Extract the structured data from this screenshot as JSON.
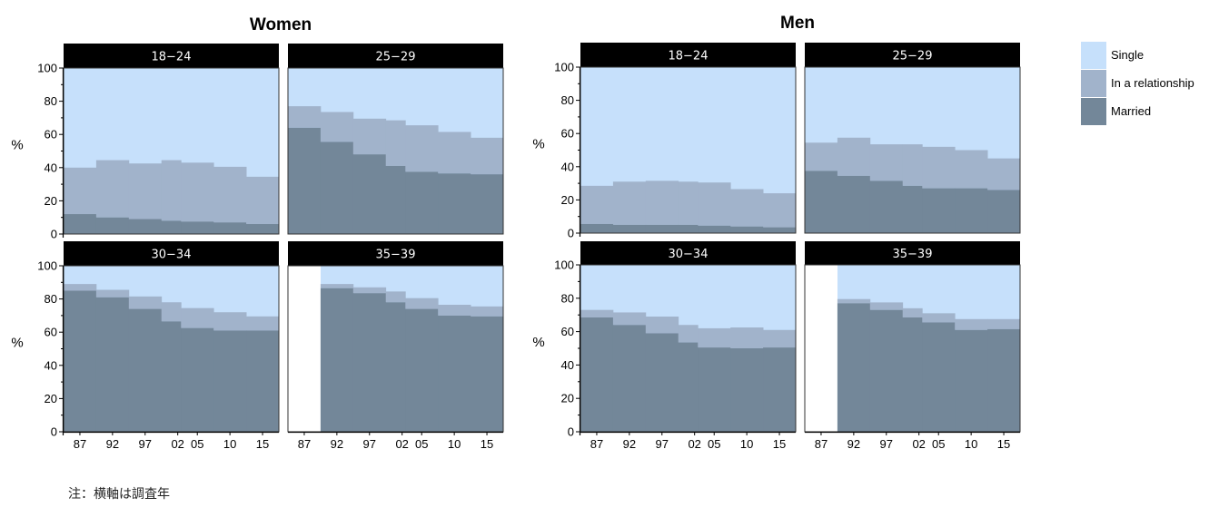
{
  "colors": {
    "single": "#c6e0fb",
    "relationship": "#a1b3cb",
    "married": "#738799",
    "strip": "#000000",
    "missing": "#ffffff"
  },
  "note": "注：横軸は調査年",
  "chart_data": {
    "type": "area",
    "groups": [
      {
        "title": "Women",
        "ylabel": "%",
        "panels": [
          {
            "age": "18−24",
            "bins": [
              {
                "from": 1984.5,
                "to": 1989.5,
                "married": 12,
                "relationship": 40
              },
              {
                "from": 1989.5,
                "to": 1994.5,
                "married": 10,
                "relationship": 44.5
              },
              {
                "from": 1994.5,
                "to": 1999.5,
                "married": 9,
                "relationship": 42.5
              },
              {
                "from": 1999.5,
                "to": 2002.5,
                "married": 8,
                "relationship": 44.5
              },
              {
                "from": 2002.5,
                "to": 2007.5,
                "married": 7.5,
                "relationship": 43
              },
              {
                "from": 2007.5,
                "to": 2012.5,
                "married": 7,
                "relationship": 40.5
              },
              {
                "from": 2012.5,
                "to": 2017.5,
                "married": 6,
                "relationship": 34.5
              }
            ]
          },
          {
            "age": "25−29",
            "bins": [
              {
                "from": 1984.5,
                "to": 1989.5,
                "married": 64,
                "relationship": 77
              },
              {
                "from": 1989.5,
                "to": 1994.5,
                "married": 55.5,
                "relationship": 73.5
              },
              {
                "from": 1994.5,
                "to": 1999.5,
                "married": 48,
                "relationship": 69.5
              },
              {
                "from": 1999.5,
                "to": 2002.5,
                "married": 41,
                "relationship": 68.5
              },
              {
                "from": 2002.5,
                "to": 2007.5,
                "married": 37.5,
                "relationship": 65.5
              },
              {
                "from": 2007.5,
                "to": 2012.5,
                "married": 36.5,
                "relationship": 61.5
              },
              {
                "from": 2012.5,
                "to": 2017.5,
                "married": 36,
                "relationship": 58
              }
            ]
          },
          {
            "age": "30−34",
            "bins": [
              {
                "from": 1984.5,
                "to": 1989.5,
                "married": 85,
                "relationship": 89
              },
              {
                "from": 1989.5,
                "to": 1994.5,
                "married": 81,
                "relationship": 85.5
              },
              {
                "from": 1994.5,
                "to": 1999.5,
                "married": 74,
                "relationship": 81.5
              },
              {
                "from": 1999.5,
                "to": 2002.5,
                "married": 66.5,
                "relationship": 78
              },
              {
                "from": 2002.5,
                "to": 2007.5,
                "married": 62.5,
                "relationship": 74.5
              },
              {
                "from": 2007.5,
                "to": 2012.5,
                "married": 61,
                "relationship": 72
              },
              {
                "from": 2012.5,
                "to": 2017.5,
                "married": 61,
                "relationship": 69.5
              }
            ]
          },
          {
            "age": "35−39",
            "missing_until": 1989.5,
            "bins": [
              {
                "from": 1989.5,
                "to": 1994.5,
                "married": 86.5,
                "relationship": 89
              },
              {
                "from": 1994.5,
                "to": 1999.5,
                "married": 83.5,
                "relationship": 87
              },
              {
                "from": 1999.5,
                "to": 2002.5,
                "married": 78,
                "relationship": 84.5
              },
              {
                "from": 2002.5,
                "to": 2007.5,
                "married": 74,
                "relationship": 80.5
              },
              {
                "from": 2007.5,
                "to": 2012.5,
                "married": 70,
                "relationship": 76.5
              },
              {
                "from": 2012.5,
                "to": 2017.5,
                "married": 69.5,
                "relationship": 75.5
              }
            ]
          }
        ]
      },
      {
        "title": "Men",
        "ylabel": "%",
        "panels": [
          {
            "age": "18−24",
            "bins": [
              {
                "from": 1984.5,
                "to": 1989.5,
                "married": 5.5,
                "relationship": 28.5
              },
              {
                "from": 1989.5,
                "to": 1994.5,
                "married": 5,
                "relationship": 31
              },
              {
                "from": 1994.5,
                "to": 1999.5,
                "married": 5,
                "relationship": 31.5
              },
              {
                "from": 1999.5,
                "to": 2002.5,
                "married": 5,
                "relationship": 31
              },
              {
                "from": 2002.5,
                "to": 2007.5,
                "married": 4.5,
                "relationship": 30.5
              },
              {
                "from": 2007.5,
                "to": 2012.5,
                "married": 4,
                "relationship": 26.5
              },
              {
                "from": 2012.5,
                "to": 2017.5,
                "married": 3.5,
                "relationship": 24
              }
            ]
          },
          {
            "age": "25−29",
            "bins": [
              {
                "from": 1984.5,
                "to": 1989.5,
                "married": 37.5,
                "relationship": 54.5
              },
              {
                "from": 1989.5,
                "to": 1994.5,
                "married": 34.5,
                "relationship": 57.5
              },
              {
                "from": 1994.5,
                "to": 1999.5,
                "married": 31.5,
                "relationship": 53.5
              },
              {
                "from": 1999.5,
                "to": 2002.5,
                "married": 28.5,
                "relationship": 53.5
              },
              {
                "from": 2002.5,
                "to": 2007.5,
                "married": 27,
                "relationship": 52
              },
              {
                "from": 2007.5,
                "to": 2012.5,
                "married": 27,
                "relationship": 50
              },
              {
                "from": 2012.5,
                "to": 2017.5,
                "married": 26,
                "relationship": 45
              }
            ]
          },
          {
            "age": "30−34",
            "bins": [
              {
                "from": 1984.5,
                "to": 1989.5,
                "married": 68.5,
                "relationship": 73
              },
              {
                "from": 1989.5,
                "to": 1994.5,
                "married": 64,
                "relationship": 71.5
              },
              {
                "from": 1994.5,
                "to": 1999.5,
                "married": 59,
                "relationship": 69
              },
              {
                "from": 1999.5,
                "to": 2002.5,
                "married": 53.5,
                "relationship": 64
              },
              {
                "from": 2002.5,
                "to": 2007.5,
                "married": 50.5,
                "relationship": 62
              },
              {
                "from": 2007.5,
                "to": 2012.5,
                "married": 50,
                "relationship": 62.5
              },
              {
                "from": 2012.5,
                "to": 2017.5,
                "married": 50.5,
                "relationship": 61
              }
            ]
          },
          {
            "age": "35−39",
            "missing_until": 1989.5,
            "bins": [
              {
                "from": 1989.5,
                "to": 1994.5,
                "married": 77,
                "relationship": 79.5
              },
              {
                "from": 1994.5,
                "to": 1999.5,
                "married": 73,
                "relationship": 77.5
              },
              {
                "from": 1999.5,
                "to": 2002.5,
                "married": 68.5,
                "relationship": 74
              },
              {
                "from": 2002.5,
                "to": 2007.5,
                "married": 65.5,
                "relationship": 71
              },
              {
                "from": 2007.5,
                "to": 2012.5,
                "married": 61,
                "relationship": 67.5
              },
              {
                "from": 2012.5,
                "to": 2017.5,
                "married": 61.5,
                "relationship": 67.5
              }
            ]
          }
        ]
      }
    ],
    "xlim": [
      1984.5,
      2017.5
    ],
    "ylim": [
      0,
      100
    ],
    "x_ticks": [
      1987,
      1992,
      1997,
      2002,
      2005,
      2010,
      2015
    ],
    "x_tick_labels": [
      "87",
      "92",
      "97",
      "02",
      "05",
      "10",
      "15"
    ],
    "y_ticks": [
      0,
      20,
      40,
      60,
      80,
      100
    ],
    "y_tick_labels": [
      "0",
      "20",
      "40",
      "60",
      "80",
      "100"
    ],
    "legend": [
      "Single",
      "In a relationship",
      "Married"
    ],
    "legend_position": "right"
  }
}
